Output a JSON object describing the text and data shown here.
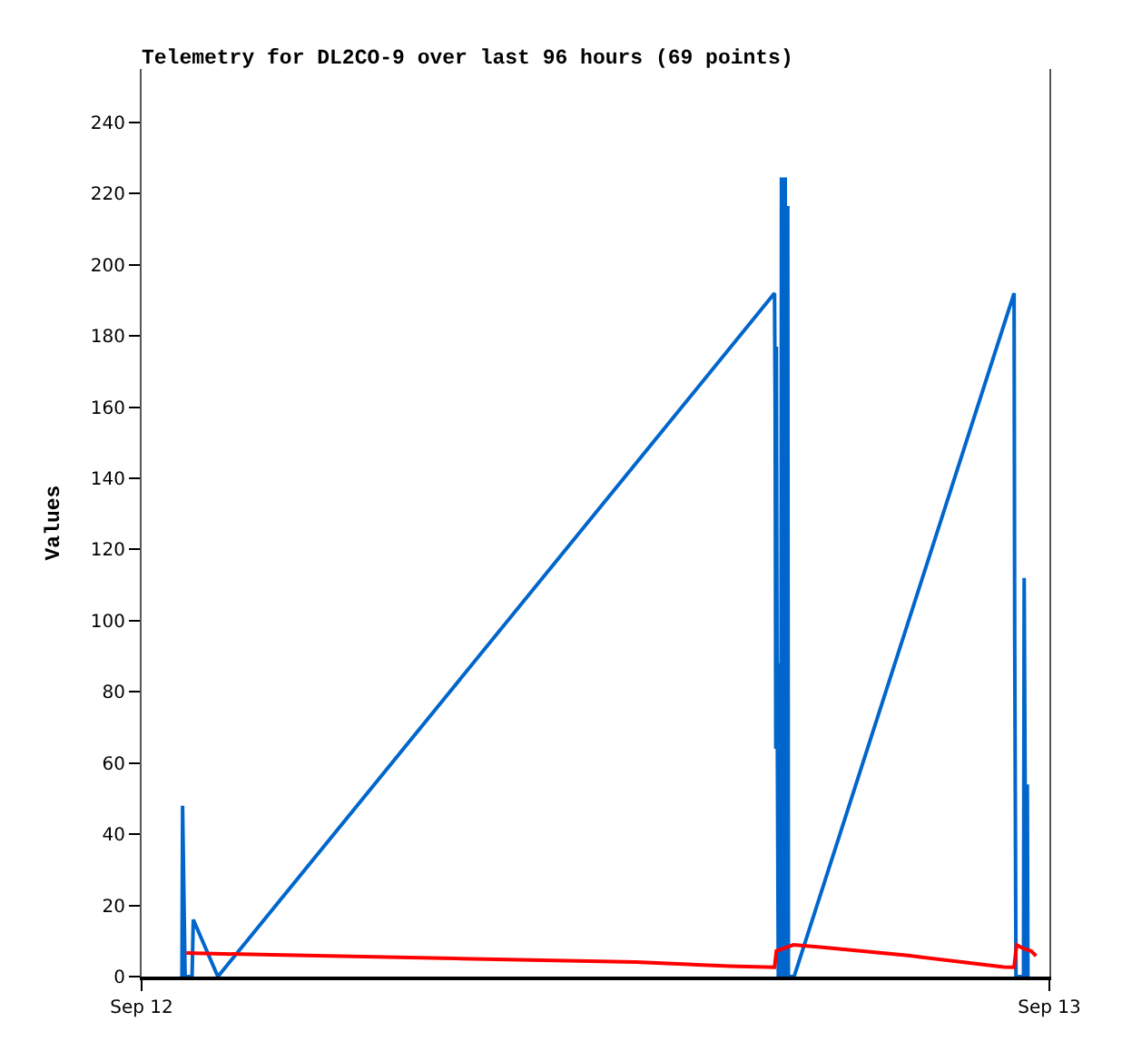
{
  "chart_data": {
    "type": "line",
    "title": "Telemetry for DL2CO-9 over last 96 hours (69 points)",
    "ylabel": "Values",
    "xlim": [
      "--09-12",
      "--09-13"
    ],
    "xticks": [
      {
        "value": "--09-12",
        "label": "Sep 12"
      },
      {
        "value": "--09-13",
        "label": "Sep 13"
      }
    ],
    "ylim": [
      0,
      255
    ],
    "yticks": [
      0,
      20,
      40,
      60,
      80,
      100,
      120,
      140,
      160,
      180,
      200,
      220,
      240
    ],
    "series": [
      {
        "color": "#0066cc",
        "x": [
          "--09-12T01:04",
          "--09-12T01:05",
          "--09-12T01:07",
          "--09-12T01:09",
          "--09-12T01:20",
          "--09-12T01:22",
          "--09-12T02:01",
          "--09-12T16:44",
          "--09-12T16:45",
          "--09-12T16:46",
          "--09-12T16:47",
          "--09-12T16:48",
          "--09-12T16:50",
          "--09-12T16:52",
          "--09-12T16:54",
          "--09-12T16:55",
          "--09-12T16:56",
          "--09-12T16:57",
          "--09-12T16:59",
          "--09-12T17:00",
          "--09-12T17:01",
          "--09-12T17:02",
          "--09-12T17:03",
          "--09-12T17:04",
          "--09-12T17:05",
          "--09-12T17:06",
          "--09-12T17:08",
          "--09-12T17:15",
          "--09-12T23:04",
          "--09-12T23:05",
          "--09-12T23:07",
          "--09-12T23:19",
          "--09-12T23:20",
          "--09-12T23:23",
          "--09-12T23:25",
          "--09-12T23:26"
        ],
        "values": [
          0,
          48,
          24,
          0,
          0,
          16,
          0,
          192,
          160,
          64,
          177,
          88,
          0,
          88,
          0,
          224,
          224,
          0,
          0,
          224,
          224,
          0,
          0,
          216,
          216,
          0,
          0,
          0,
          192,
          96,
          0,
          0,
          112,
          0,
          54,
          0
        ]
      },
      {
        "color": "#ff0000",
        "x": [
          "--09-12T01:11",
          "--09-12T03:28",
          "--09-12T08:16",
          "--09-12T13:04",
          "--09-12T15:33",
          "--09-12T16:44",
          "--09-12T16:47",
          "--09-12T17:14",
          "--09-12T18:00",
          "--09-12T20:16",
          "--09-12T22:48",
          "--09-12T23:04",
          "--09-12T23:08",
          "--09-12T23:20",
          "--09-12T23:31",
          "--09-12T23:39"
        ],
        "values": [
          6.6,
          6.1,
          5.1,
          4.1,
          2.9,
          2.6,
          7.2,
          8.9,
          8.2,
          5.9,
          2.7,
          2.6,
          8.9,
          7.8,
          7.2,
          5.8
        ]
      }
    ]
  }
}
